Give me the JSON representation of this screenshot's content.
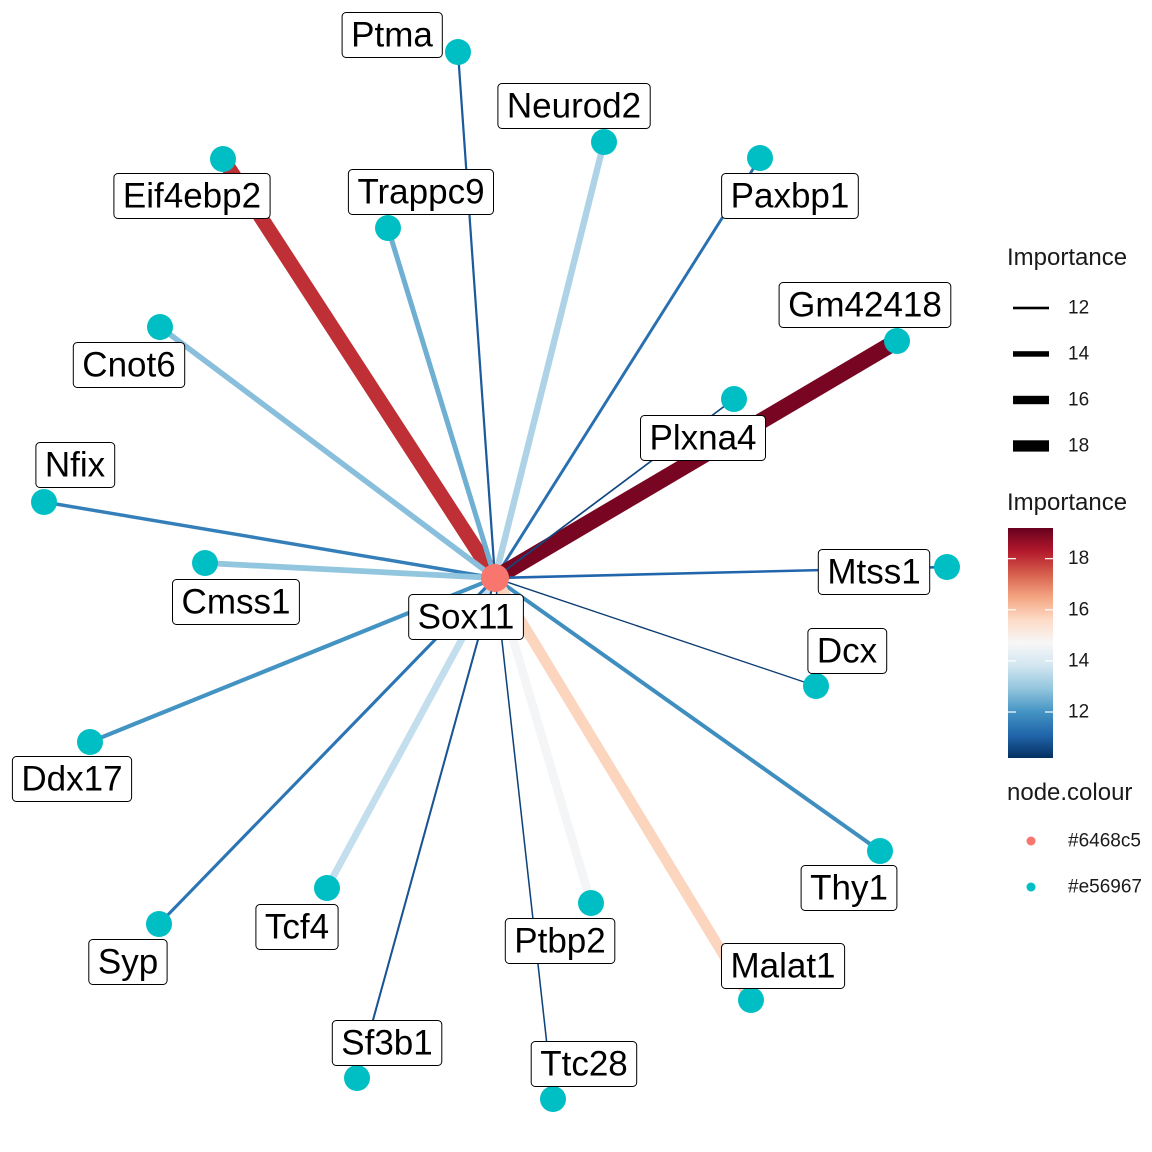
{
  "graph": {
    "hub": {
      "id": "Sox11",
      "colour": "#6468c5",
      "fill": "#F8766D"
    },
    "nodes": [
      {
        "id": "Ptma",
        "importance": 10.9
      },
      {
        "id": "Neurod2",
        "importance": 13.3
      },
      {
        "id": "Eif4ebp2",
        "importance": 18.0
      },
      {
        "id": "Trappc9",
        "importance": 12.5
      },
      {
        "id": "Paxbp1",
        "importance": 11.3
      },
      {
        "id": "Gm42418",
        "importance": 19.0
      },
      {
        "id": "Cnot6",
        "importance": 12.8
      },
      {
        "id": "Plxna4",
        "importance": 10.6
      },
      {
        "id": "Nfix",
        "importance": 11.6
      },
      {
        "id": "Cmss1",
        "importance": 12.9
      },
      {
        "id": "Mtss1",
        "importance": 11.1
      },
      {
        "id": "Dcx",
        "importance": 10.4
      },
      {
        "id": "Ddx17",
        "importance": 12.0
      },
      {
        "id": "Thy1",
        "importance": 11.9
      },
      {
        "id": "Tcf4",
        "importance": 13.6
      },
      {
        "id": "Ptbp2",
        "importance": 14.6
      },
      {
        "id": "Malat1",
        "importance": 15.7
      },
      {
        "id": "Syp",
        "importance": 11.4
      },
      {
        "id": "Sf3b1",
        "importance": 10.8
      },
      {
        "id": "Ttc28",
        "importance": 10.5
      }
    ],
    "leaf_colour": "#e56967",
    "leaf_fill": "#00BFC4"
  },
  "legend": {
    "size": {
      "title": "Importance",
      "entries": [
        12,
        14,
        16,
        18
      ]
    },
    "colour": {
      "title": "Importance",
      "ticks": [
        12,
        14,
        16,
        18
      ],
      "range": [
        10.2,
        19.2
      ],
      "gradient": [
        "#053061",
        "#2166AC",
        "#4393C3",
        "#92C5DE",
        "#D1E5F0",
        "#F7F7F7",
        "#FDDBC7",
        "#F4A582",
        "#D6604D",
        "#B2182B",
        "#67001F"
      ]
    },
    "node_colour": {
      "title": "node.colour",
      "entries": [
        {
          "label": "#6468c5",
          "color": "#F8766D"
        },
        {
          "label": "#e56967",
          "color": "#00BFC4"
        }
      ]
    }
  }
}
